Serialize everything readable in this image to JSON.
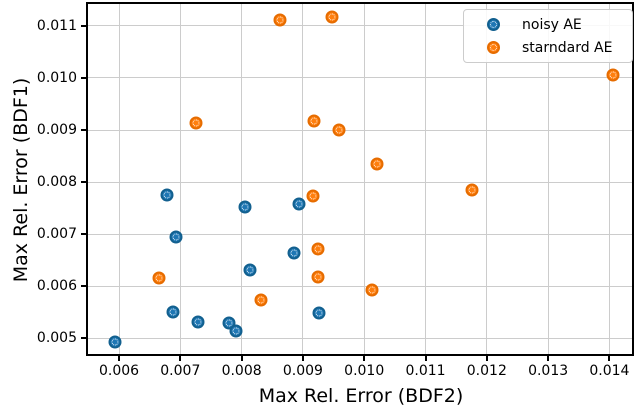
{
  "chart_data": {
    "type": "scatter",
    "title": "",
    "xlabel": "Max Rel. Error (BDF2)",
    "ylabel": "Max Rel. Error (BDF1)",
    "xlim": [
      0.005494,
      0.014401
    ],
    "ylim": [
      0.004654,
      0.011423
    ],
    "x_ticks": [
      "0.006",
      "0.007",
      "0.008",
      "0.009",
      "0.010",
      "0.011",
      "0.012",
      "0.013",
      "0.014"
    ],
    "y_ticks": [
      "0.005",
      "0.006",
      "0.007",
      "0.008",
      "0.009",
      "0.010",
      "0.011"
    ],
    "grid": true,
    "legend_position": "upper right",
    "background_color": "#ffffff",
    "grid_color": "#cccccc",
    "series": [
      {
        "name": "noisy AE",
        "color": "#1f77b4",
        "edge_color": "#12608f",
        "points": [
          [
            0.00594,
            0.00492
          ],
          [
            0.00678,
            0.00775
          ],
          [
            0.00693,
            0.00694
          ],
          [
            0.00688,
            0.0055
          ],
          [
            0.00729,
            0.00531
          ],
          [
            0.00779,
            0.00529
          ],
          [
            0.00791,
            0.00514
          ],
          [
            0.00806,
            0.00752
          ],
          [
            0.00814,
            0.00631
          ],
          [
            0.00894,
            0.00757
          ],
          [
            0.00885,
            0.00664
          ],
          [
            0.00926,
            0.00549
          ]
        ]
      },
      {
        "name": "starndard AE",
        "color": "#ff7f0e",
        "edge_color": "#e66c00",
        "points": [
          [
            0.00665,
            0.00615
          ],
          [
            0.00726,
            0.00914
          ],
          [
            0.00832,
            0.00573
          ],
          [
            0.00862,
            0.01112
          ],
          [
            0.00948,
            0.01117
          ],
          [
            0.00917,
            0.00774
          ],
          [
            0.00918,
            0.00917
          ],
          [
            0.00925,
            0.00671
          ],
          [
            0.00925,
            0.00618
          ],
          [
            0.00959,
            0.009
          ],
          [
            0.01013,
            0.00593
          ],
          [
            0.01021,
            0.00835
          ],
          [
            0.01176,
            0.00785
          ],
          [
            0.01406,
            0.01006
          ]
        ]
      }
    ]
  }
}
